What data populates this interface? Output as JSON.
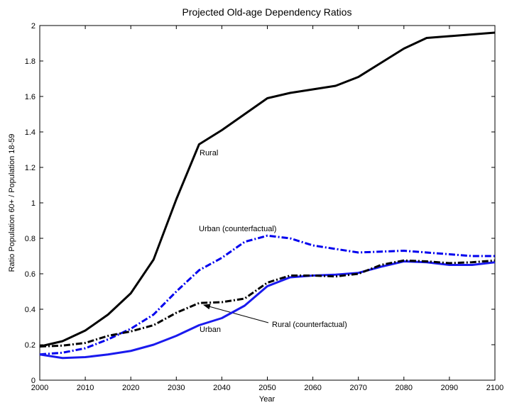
{
  "chart_data": {
    "type": "line",
    "title": "Projected Old-age Dependency Ratios",
    "x_label": "Year",
    "y_label": "Ratio Population 60+ / Population 18-59",
    "x": [
      2000,
      2005,
      2010,
      2015,
      2020,
      2025,
      2030,
      2035,
      2040,
      2045,
      2050,
      2055,
      2060,
      2065,
      2070,
      2075,
      2080,
      2085,
      2090,
      2095,
      2100
    ],
    "series": [
      {
        "name": "Rural",
        "color": "#000000",
        "dash": false,
        "values": [
          0.19,
          0.22,
          0.28,
          0.37,
          0.49,
          0.68,
          1.02,
          1.33,
          1.41,
          1.5,
          1.59,
          1.62,
          1.64,
          1.66,
          1.71,
          1.79,
          1.87,
          1.93,
          1.94,
          1.95,
          1.96
        ]
      },
      {
        "name": "Urban (counterfactual)",
        "color": "#0000ee",
        "dash": true,
        "values": [
          0.145,
          0.155,
          0.18,
          0.23,
          0.29,
          0.37,
          0.5,
          0.62,
          0.69,
          0.78,
          0.815,
          0.8,
          0.76,
          0.74,
          0.72,
          0.725,
          0.73,
          0.72,
          0.71,
          0.7,
          0.7
        ]
      },
      {
        "name": "Urban",
        "color": "#1a1aee",
        "dash": false,
        "values": [
          0.145,
          0.125,
          0.13,
          0.145,
          0.165,
          0.2,
          0.25,
          0.31,
          0.35,
          0.42,
          0.53,
          0.58,
          0.59,
          0.595,
          0.605,
          0.64,
          0.67,
          0.665,
          0.65,
          0.65,
          0.665
        ]
      },
      {
        "name": "Rural (counterfactual)",
        "color": "#000000",
        "dash": true,
        "values": [
          0.19,
          0.195,
          0.21,
          0.25,
          0.275,
          0.31,
          0.38,
          0.435,
          0.44,
          0.46,
          0.55,
          0.59,
          0.59,
          0.585,
          0.6,
          0.65,
          0.675,
          0.67,
          0.66,
          0.665,
          0.675
        ]
      }
    ],
    "xlim": [
      2000,
      2100
    ],
    "xticks": [
      2000,
      2010,
      2020,
      2030,
      2040,
      2050,
      2060,
      2070,
      2080,
      2090,
      2100
    ],
    "ylim": [
      0,
      2
    ],
    "yticks": [
      0,
      0.2,
      0.4,
      0.6,
      0.8,
      1,
      1.2,
      1.4,
      1.6,
      1.8,
      2
    ],
    "grid": false
  }
}
